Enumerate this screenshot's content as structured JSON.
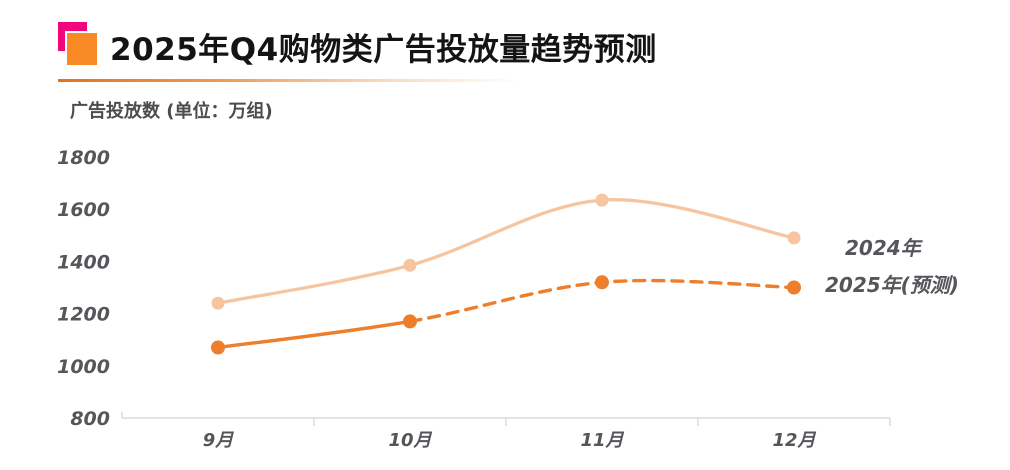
{
  "header": {
    "title": "2025年Q4购物类广告投放量趋势预测"
  },
  "chart_data": {
    "type": "line",
    "title": "2025年Q4购物类广告投放量趋势预测",
    "ylabel": "广告投放数 (单位：万组)",
    "xlabel": "",
    "categories": [
      "9月",
      "10月",
      "11月",
      "12月"
    ],
    "series": [
      {
        "name": "2024年",
        "values": [
          1240,
          1385,
          1635,
          1490
        ],
        "color": "#F6C5A0",
        "line_style": "solid"
      },
      {
        "name": "2025年(预测)",
        "values": [
          1070,
          1170,
          1320,
          1300
        ],
        "color": "#EE7E2C",
        "line_style": "solid-then-dashed",
        "solid_until_index": 1
      }
    ],
    "ylim": [
      800,
      1800
    ],
    "yticks": [
      800,
      1000,
      1200,
      1400,
      1600,
      1800
    ],
    "grid": false,
    "smooth": true,
    "legend_position": "right-of-line-ends"
  },
  "colors": {
    "logo_pink": "#F1067E",
    "logo_orange": "#F88A25",
    "divider_orange": "#E2731D",
    "axis_line": "#DBDBDB",
    "tick_label": "#55565A",
    "axis_title": "#4B4C4E",
    "title_text": "#141414",
    "background": "#FFFFFF"
  }
}
